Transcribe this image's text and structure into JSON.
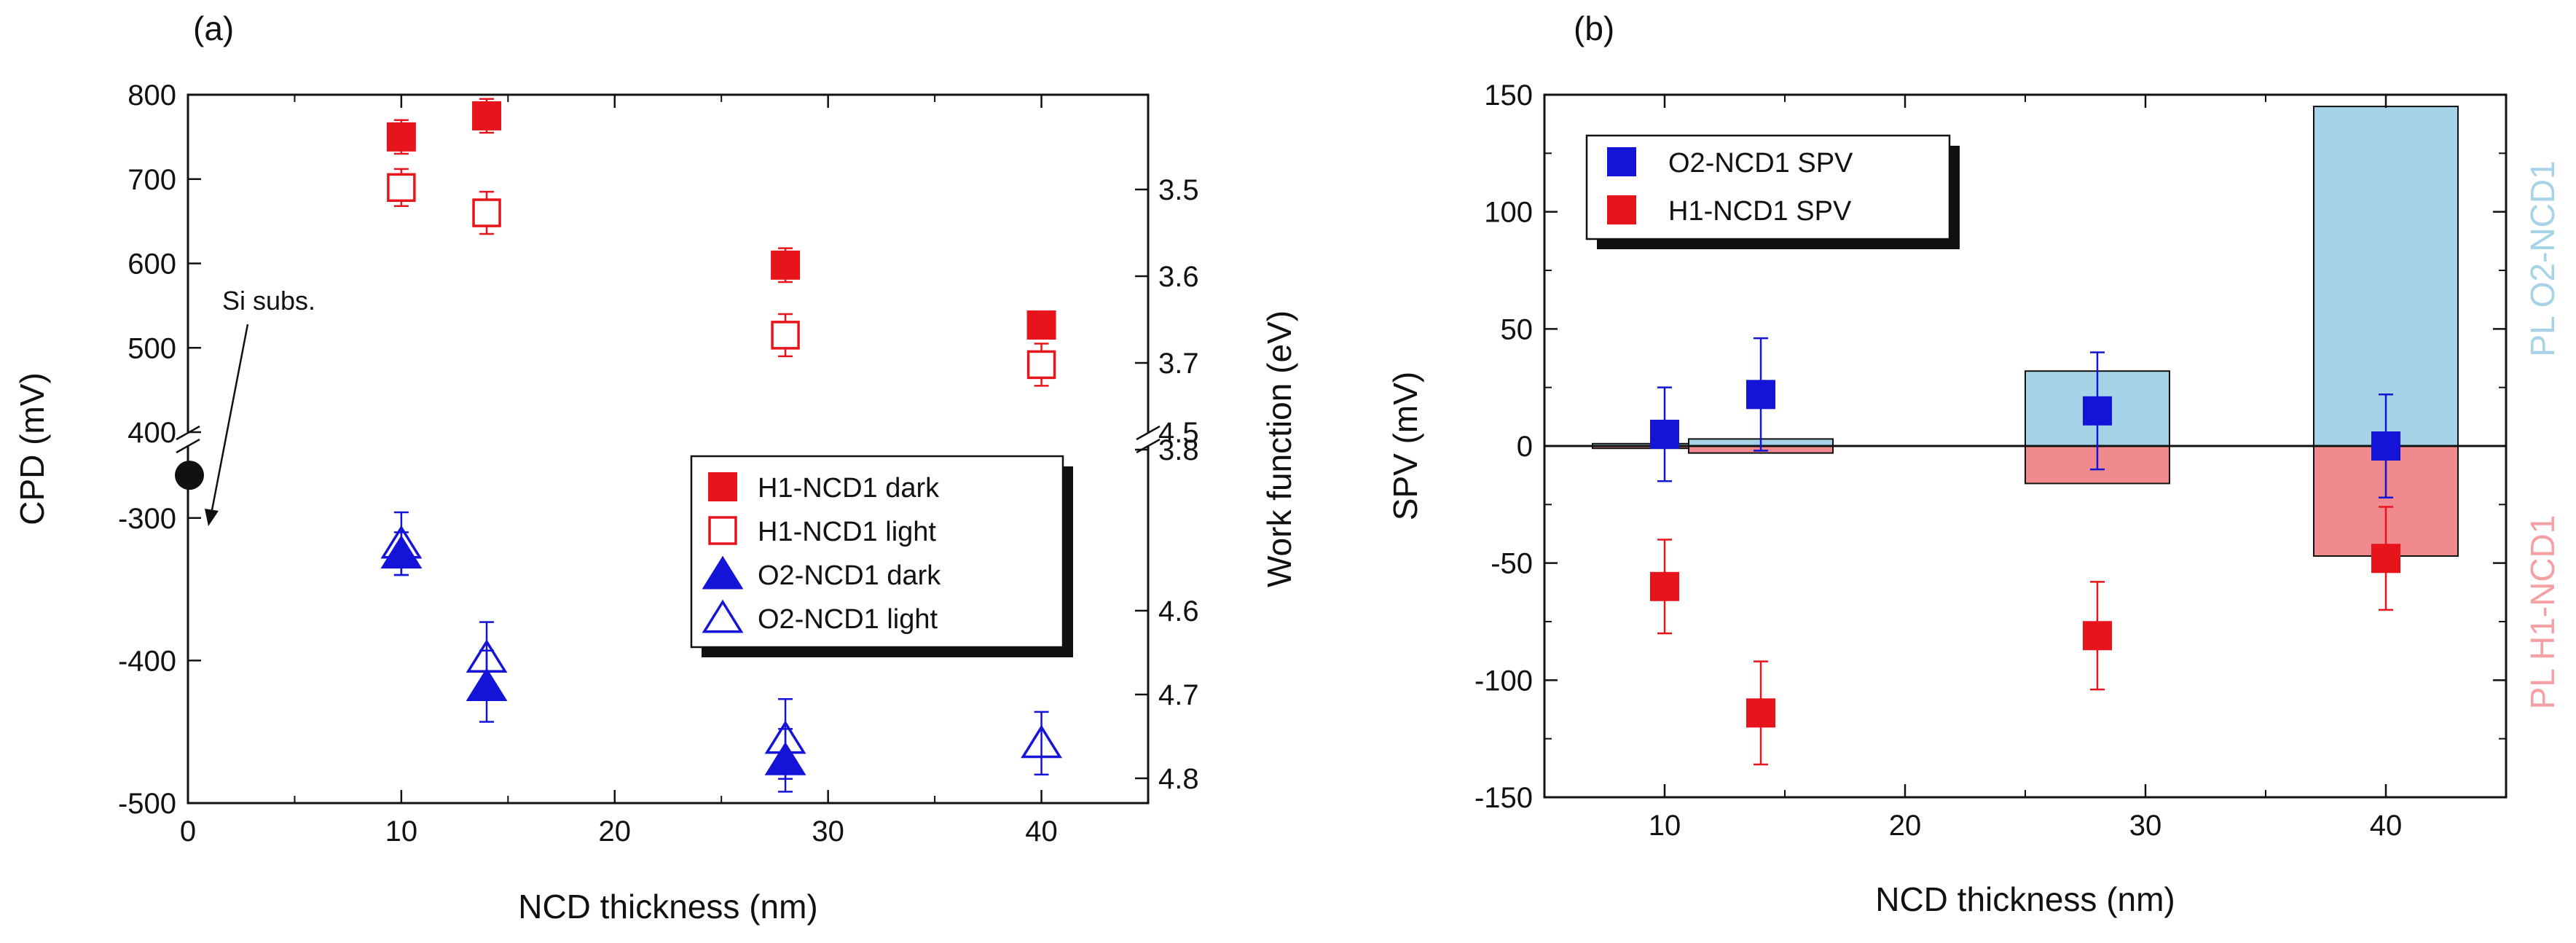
{
  "chart_data": [
    {
      "type": "scatter",
      "panel_label": "(a)",
      "xlabel": "NCD thickness (nm)",
      "ylabel": "CPD (mV)",
      "y2label": "Work function (eV)",
      "xlim": [
        0,
        45
      ],
      "x_ticks": [
        0,
        10,
        20,
        30,
        40
      ],
      "y_upper_range": [
        400,
        800
      ],
      "y_upper_ticks": [
        400,
        500,
        600,
        700,
        800
      ],
      "y_lower_range": [
        -500,
        -250
      ],
      "y_lower_ticks": [
        -500,
        -400,
        -300
      ],
      "y2_upper_ticks": [
        "3.5",
        "3.6",
        "3.7",
        "3.8"
      ],
      "y2_break_tick": "4.5",
      "y2_lower_ticks": [
        "4.6",
        "4.7",
        "4.8"
      ],
      "axis_break": "400 / -250 mV (4.5 eV)",
      "annotation": {
        "text": "Si subs.",
        "x": 0,
        "y": -270
      },
      "legend_position": "bottom-right",
      "series": [
        {
          "name": "H1-NCD1 dark",
          "color": "#e8141b",
          "marker": "square-filled",
          "x": [
            10,
            14,
            28,
            40
          ],
          "y": [
            750,
            775,
            598,
            527
          ],
          "yerr": [
            20,
            20,
            20,
            15
          ]
        },
        {
          "name": "H1-NCD1 light",
          "color": "#e8141b",
          "marker": "square-open",
          "x": [
            10,
            14,
            28,
            40
          ],
          "y": [
            690,
            660,
            515,
            480
          ],
          "yerr": [
            22,
            25,
            25,
            25
          ]
        },
        {
          "name": "O2-NCD1 dark",
          "color": "#1414d8",
          "marker": "triangle-filled",
          "x": [
            10,
            14,
            28
          ],
          "y": [
            -325,
            -418,
            -470
          ],
          "yerr": [
            15,
            25,
            22
          ]
        },
        {
          "name": "O2-NCD1 light",
          "color": "#1414d8",
          "marker": "triangle-open",
          "x": [
            10,
            14,
            28,
            40
          ],
          "y": [
            -318,
            -398,
            -455,
            -458
          ],
          "yerr": [
            22,
            25,
            28,
            22
          ]
        }
      ],
      "si_substrate": {
        "x": 0,
        "y": -270,
        "color": "#111111"
      }
    },
    {
      "type": "bar+scatter",
      "panel_label": "(b)",
      "xlabel": "NCD thickness (nm)",
      "ylabel": "SPV (mV)",
      "xlim": [
        5,
        45
      ],
      "ylim": [
        -150,
        150
      ],
      "x_ticks": [
        10,
        20,
        30,
        40
      ],
      "y_ticks": [
        -150,
        -100,
        -50,
        0,
        50,
        100,
        150
      ],
      "zero_line": true,
      "legend_position": "top-left",
      "series": [
        {
          "name": "O2-NCD1 SPV",
          "color": "#1414d8",
          "marker": "square-filled",
          "x": [
            10,
            14,
            28,
            40
          ],
          "y": [
            5,
            22,
            15,
            0
          ],
          "yerr": [
            20,
            24,
            25,
            22
          ]
        },
        {
          "name": "H1-NCD1 SPV",
          "color": "#e8141b",
          "marker": "square-filled",
          "x": [
            10,
            14,
            28,
            40
          ],
          "y": [
            -60,
            -114,
            -81,
            -48
          ],
          "yerr": [
            20,
            22,
            23,
            22
          ]
        }
      ],
      "bars": [
        {
          "name": "PL O2-NCD1",
          "color": "#a6d3e8",
          "x": [
            10,
            14,
            28,
            40
          ],
          "values": [
            1,
            3,
            32,
            145
          ],
          "width": 6
        },
        {
          "name": "PL H1-NCD1",
          "color": "#f08a8e",
          "x": [
            10,
            14,
            28,
            40
          ],
          "values": [
            -1,
            -3,
            -16,
            -47
          ],
          "width": 6
        }
      ],
      "side_labels": {
        "top": "PL O2-NCD1",
        "bottom": "PL H1-NCD1",
        "top_color": "#a6d3e8",
        "bottom_color": "#f4a0a4"
      }
    }
  ]
}
